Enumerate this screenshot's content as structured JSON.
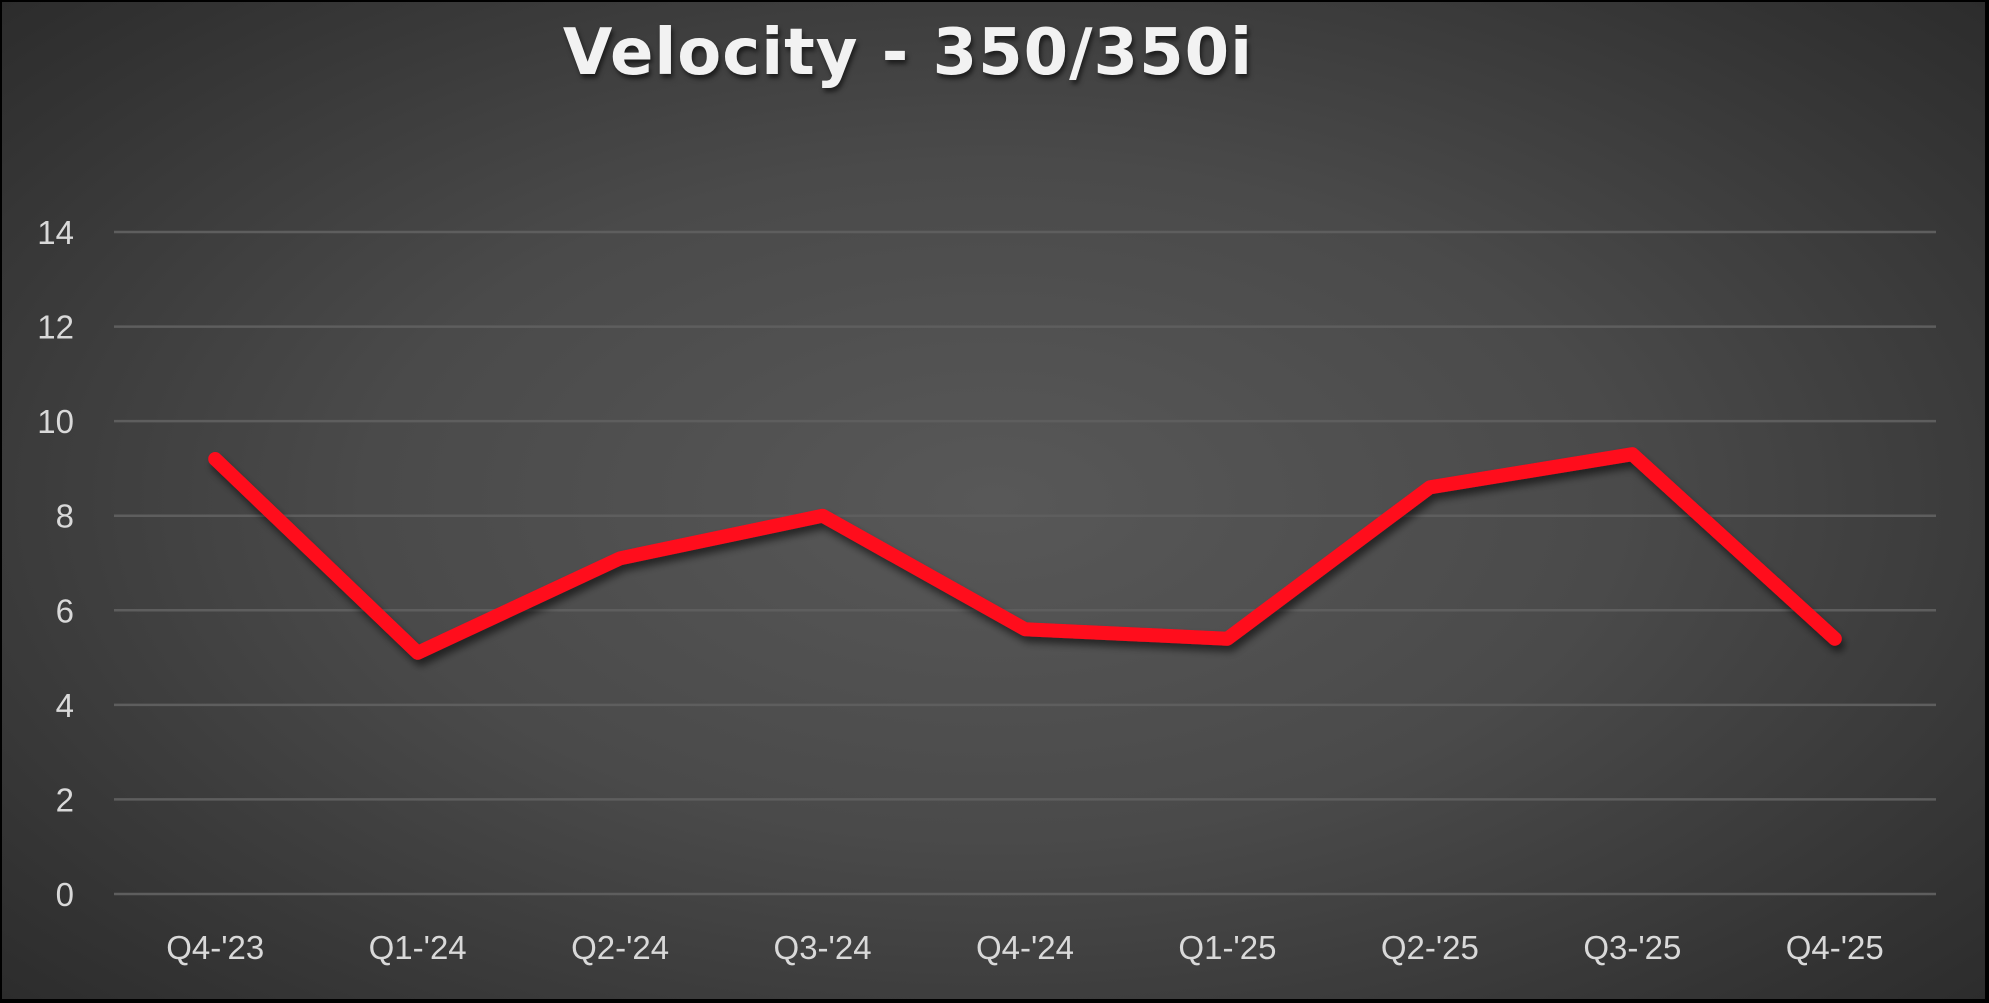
{
  "chart_data": {
    "type": "line",
    "title": "Velocity - 350/350i",
    "xlabel": "",
    "ylabel": "",
    "categories": [
      "Q4-'23",
      "Q1-'24",
      "Q2-'24",
      "Q3-'24",
      "Q4-'24",
      "Q1-'25",
      "Q2-'25",
      "Q3-'25",
      "Q4-'25"
    ],
    "series": [
      {
        "name": "Velocity",
        "color": "#ff0a1e",
        "values": [
          9.2,
          5.1,
          7.1,
          8.0,
          5.6,
          5.4,
          8.6,
          9.3,
          5.4
        ]
      }
    ],
    "ylim": [
      0,
      14
    ],
    "yticks": [
      0,
      2,
      4,
      6,
      8,
      10,
      12,
      14
    ],
    "grid": true,
    "legend": "none"
  },
  "colors": {
    "background_center": "#585858",
    "background_edge": "#2b2b2b",
    "gridline": "#5e5e5e",
    "text": "#d9d9d9",
    "title": "#f2f2f2",
    "line": "#ff0a1e"
  }
}
